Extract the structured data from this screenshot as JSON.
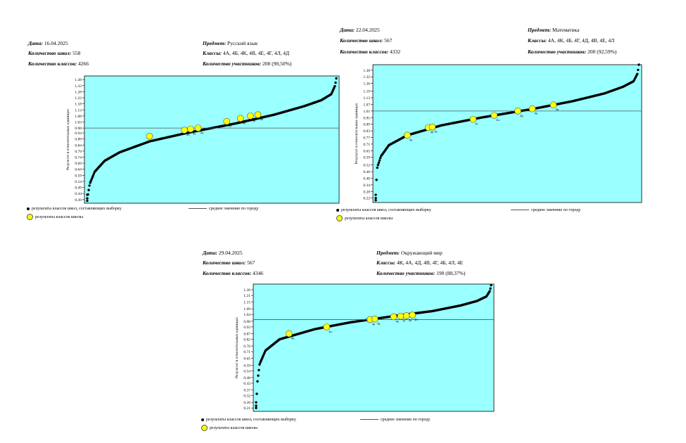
{
  "labels": {
    "date": "Дата:",
    "schools": "Количество школ:",
    "classes_count": "Количество классов:",
    "subject": "Предмет:",
    "classes": "Классы:",
    "participants": "Количество участников:"
  },
  "legend": {
    "sample": "результаты классов школ, составляющих выборку",
    "school": "результаты классов школы",
    "mean": "среднее значение по городу"
  },
  "colors": {
    "plot_bg": "#99ffff",
    "dots": "#000000",
    "school_marker": "#ffff00",
    "mean_line": "#555555"
  },
  "panels": [
    {
      "date": "16.04.2025",
      "schools": "558",
      "classes_count": "4266",
      "subject": "Русский язык",
      "classes": "4А, 4Б, 4К, 4В, 4Е, 4Г, 4Л, 4Д",
      "participants": "200 (90,50%)"
    },
    {
      "date": "22.04.2025",
      "schools": "567",
      "classes_count": "4332",
      "subject": "Математика",
      "classes": "4А, 4К, 4Б, 4Г, 4Д, 4В, 4Е, 4Л",
      "participants": "200 (92,59%)"
    },
    {
      "date": "29.04.2025",
      "schools": "567",
      "classes_count": "4346",
      "subject": "Окружающий мир",
      "classes": "4К, 4А, 4Д, 4В, 4Г, 4Б, 4Л, 4Е",
      "participants": "190 (88,37%)"
    }
  ],
  "chart_data": [
    {
      "type": "scatter",
      "ylabel": "Результат в относительных единицах",
      "yticks": [
        "1.38",
        "1.33",
        "1.28",
        "1.23",
        "1.18",
        "1.13",
        "1.08",
        "1.03",
        "0.98",
        "0.94",
        "0.89",
        "0.84",
        "0.79",
        "0.74",
        "0.69",
        "0.64",
        "0.59",
        "0.54",
        "0.49",
        "0.44",
        "0.39"
      ],
      "ylim": [
        0.36,
        1.41
      ],
      "mean": 0.98,
      "n_classes": 4266,
      "curve_knots": [
        [
          0,
          0.38
        ],
        [
          0.002,
          0.42
        ],
        [
          0.01,
          0.52
        ],
        [
          0.03,
          0.62
        ],
        [
          0.07,
          0.71
        ],
        [
          0.13,
          0.78
        ],
        [
          0.25,
          0.87
        ],
        [
          0.4,
          0.94
        ],
        [
          0.5,
          0.98
        ],
        [
          0.6,
          1.02
        ],
        [
          0.75,
          1.09
        ],
        [
          0.87,
          1.16
        ],
        [
          0.94,
          1.21
        ],
        [
          0.98,
          1.26
        ],
        [
          0.995,
          1.33
        ],
        [
          1,
          1.39
        ]
      ],
      "school_points": [
        {
          "label": "4А",
          "rank": 0.25,
          "y": 0.913
        },
        {
          "label": "4Б",
          "rank": 0.39,
          "y": 0.963
        },
        {
          "label": "4Е",
          "rank": 0.415,
          "y": 0.972
        },
        {
          "label": "4Д",
          "rank": 0.445,
          "y": 0.98
        },
        {
          "label": "4Г",
          "rank": 0.56,
          "y": 1.035
        },
        {
          "label": "4Л",
          "rank": 0.615,
          "y": 1.06
        },
        {
          "label": "4К",
          "rank": 0.655,
          "y": 1.08
        },
        {
          "label": "4В",
          "rank": 0.685,
          "y": 1.09
        }
      ]
    },
    {
      "type": "scatter",
      "ylabel": "Результат в относительных единицах",
      "yticks": [
        "1.38",
        "1.32",
        "1.26",
        "1.19",
        "1.13",
        "1.07",
        "1.01",
        "0.95",
        "0.89",
        "0.83",
        "0.77",
        "0.71",
        "0.65",
        "0.59",
        "0.52",
        "0.46",
        "0.40",
        "0.34",
        "0.28",
        "0.22"
      ],
      "ylim": [
        0.18,
        1.43
      ],
      "mean": 1.01,
      "n_classes": 4332,
      "curve_knots": [
        [
          0,
          0.2
        ],
        [
          0.002,
          0.35
        ],
        [
          0.006,
          0.5
        ],
        [
          0.02,
          0.6
        ],
        [
          0.05,
          0.7
        ],
        [
          0.12,
          0.79
        ],
        [
          0.25,
          0.88
        ],
        [
          0.4,
          0.95
        ],
        [
          0.5,
          0.99
        ],
        [
          0.6,
          1.03
        ],
        [
          0.75,
          1.1
        ],
        [
          0.87,
          1.17
        ],
        [
          0.94,
          1.23
        ],
        [
          0.98,
          1.28
        ],
        [
          0.995,
          1.35
        ],
        [
          1,
          1.43
        ]
      ],
      "school_points": [
        {
          "label": "4А",
          "rank": 0.12,
          "y": 0.79
        },
        {
          "label": "4Б",
          "rank": 0.2,
          "y": 0.86
        },
        {
          "label": "4Е",
          "rank": 0.215,
          "y": 0.865
        },
        {
          "label": "4Г",
          "rank": 0.37,
          "y": 0.935
        },
        {
          "label": "4Л",
          "rank": 0.45,
          "y": 0.97
        },
        {
          "label": "4Д",
          "rank": 0.54,
          "y": 1.01
        },
        {
          "label": "4К",
          "rank": 0.595,
          "y": 1.03
        },
        {
          "label": "4В",
          "rank": 0.675,
          "y": 1.065
        }
      ]
    },
    {
      "type": "scatter",
      "ylabel": "Результат в относительных единицах",
      "yticks": [
        "1.26",
        "1.21",
        "1.15",
        "1.09",
        "1.04",
        "0.98",
        "0.93",
        "0.87",
        "0.82",
        "0.76",
        "0.71",
        "0.65",
        "0.59",
        "0.54",
        "0.48",
        "0.43",
        "0.37",
        "0.32",
        "0.26",
        "0.21"
      ],
      "ylim": [
        0.18,
        1.31
      ],
      "mean": 0.995,
      "n_classes": 4346,
      "curve_knots": [
        [
          0,
          0.21
        ],
        [
          0.002,
          0.3
        ],
        [
          0.006,
          0.45
        ],
        [
          0.015,
          0.6
        ],
        [
          0.04,
          0.72
        ],
        [
          0.1,
          0.82
        ],
        [
          0.25,
          0.91
        ],
        [
          0.4,
          0.97
        ],
        [
          0.5,
          1.0
        ],
        [
          0.6,
          1.03
        ],
        [
          0.75,
          1.07
        ],
        [
          0.87,
          1.12
        ],
        [
          0.94,
          1.16
        ],
        [
          0.98,
          1.2
        ],
        [
          0.995,
          1.25
        ],
        [
          1,
          1.3
        ]
      ],
      "school_points": [
        {
          "label": "4К",
          "rank": 0.14,
          "y": 0.87
        },
        {
          "label": "4А",
          "rank": 0.3,
          "y": 0.93
        },
        {
          "label": "4Е",
          "rank": 0.485,
          "y": 0.995
        },
        {
          "label": "4Д",
          "rank": 0.505,
          "y": 1.0
        },
        {
          "label": "4В",
          "rank": 0.585,
          "y": 1.02
        },
        {
          "label": "4Г",
          "rank": 0.615,
          "y": 1.025
        },
        {
          "label": "4Л",
          "rank": 0.64,
          "y": 1.03
        },
        {
          "label": "4Б",
          "rank": 0.665,
          "y": 1.035
        }
      ]
    }
  ]
}
